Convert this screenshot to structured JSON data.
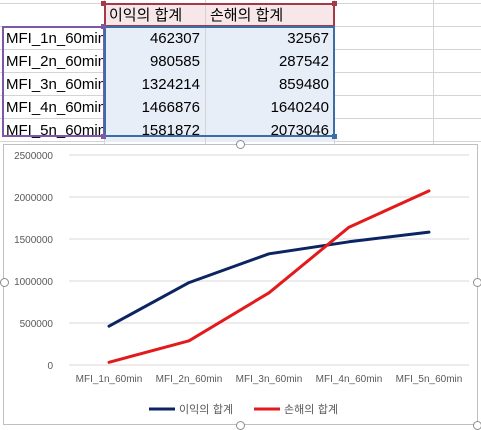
{
  "table": {
    "headers": [
      "이익의 합계",
      "손해의 합계"
    ],
    "rows": [
      {
        "name": "MFI_1n_60min",
        "profit": "462307",
        "loss": "32567"
      },
      {
        "name": "MFI_2n_60min",
        "profit": "980585",
        "loss": "287542"
      },
      {
        "name": "MFI_3n_60min",
        "profit": "1324214",
        "loss": "859480"
      },
      {
        "name": "MFI_4n_60min",
        "profit": "1466876",
        "loss": "1640240"
      },
      {
        "name": "MFI_5n_60min",
        "profit": "1581872",
        "loss": "2073046"
      }
    ]
  },
  "chart_data": {
    "type": "line",
    "categories": [
      "MFI_1n_60min",
      "MFI_2n_60min",
      "MFI_3n_60min",
      "MFI_4n_60min",
      "MFI_5n_60min"
    ],
    "series": [
      {
        "name": "이익의 합계",
        "color": "#0c2461",
        "values": [
          462307,
          980585,
          1324214,
          1466876,
          1581872
        ]
      },
      {
        "name": "손해의 합계",
        "color": "#e31a1c",
        "values": [
          32567,
          287542,
          859480,
          1640240,
          2073046
        ]
      }
    ],
    "ylim": [
      0,
      2500000
    ],
    "yticks": [
      "0",
      "500000",
      "1000000",
      "1500000",
      "2000000",
      "2500000"
    ],
    "title": "",
    "xlabel": "",
    "ylabel": "",
    "grid": true,
    "legend": "bottom"
  },
  "colors": {
    "header_fill": "#f8e7e9",
    "values_fill": "#e7eef8",
    "name_border": "#7e57a8",
    "header_border": "#a33a4a",
    "values_border": "#3a6ea5"
  }
}
